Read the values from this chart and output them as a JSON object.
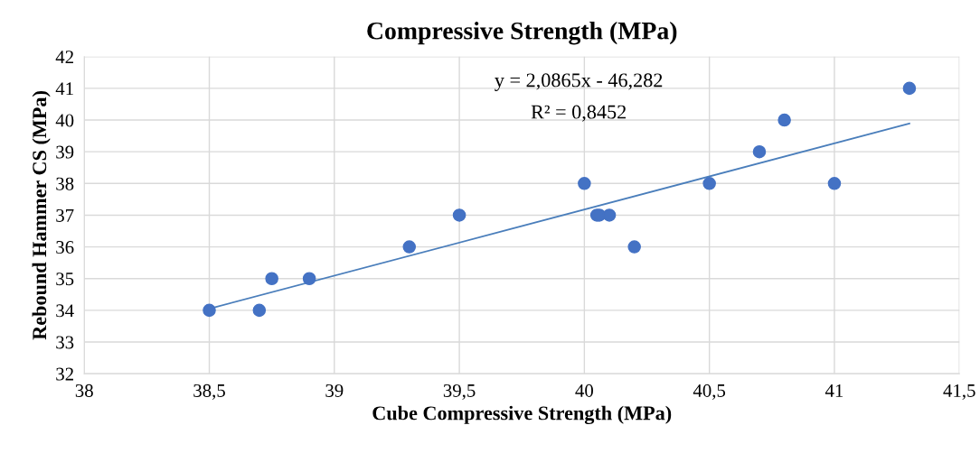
{
  "chart_data": {
    "type": "scatter",
    "title": "Compressive Strength (MPa)",
    "xlabel": "Cube Compressive Strength (MPa)",
    "ylabel": "Rebound Hammer CS (MPa)",
    "series": [
      {
        "color": "#4472c4",
        "marker": "circle",
        "x": [
          38.5,
          38.7,
          38.75,
          38.9,
          39.3,
          39.5,
          40,
          40.05,
          40.06,
          40.1,
          40.2,
          40.5,
          40.7,
          40.8,
          41,
          41.3
        ],
        "values": [
          34,
          34,
          35,
          35,
          36,
          37,
          38,
          37,
          37,
          37,
          36,
          38,
          39,
          40,
          38,
          41
        ]
      },
      {
        "type": "line",
        "marker": "none",
        "color": "#4a7ebb",
        "x": [
          38.5,
          41.3
        ],
        "values": [
          34.05,
          39.89
        ]
      }
    ],
    "annotations": [
      "y = 2,0865x - 46,282",
      "R² = 0,8452"
    ],
    "xlim": [
      38,
      41.5
    ],
    "xticks": [
      38,
      {
        "value": 38.5,
        "label": "38,5"
      },
      39,
      {
        "value": 39.5,
        "label": "39,5"
      },
      40,
      {
        "value": 40.5,
        "label": "40,5"
      },
      41,
      {
        "value": 41.5,
        "label": "41,5"
      }
    ],
    "ylim": [
      32,
      42
    ],
    "yticks": [
      32,
      33,
      34,
      35,
      36,
      37,
      38,
      39,
      40,
      41,
      42
    ],
    "grid": true
  }
}
